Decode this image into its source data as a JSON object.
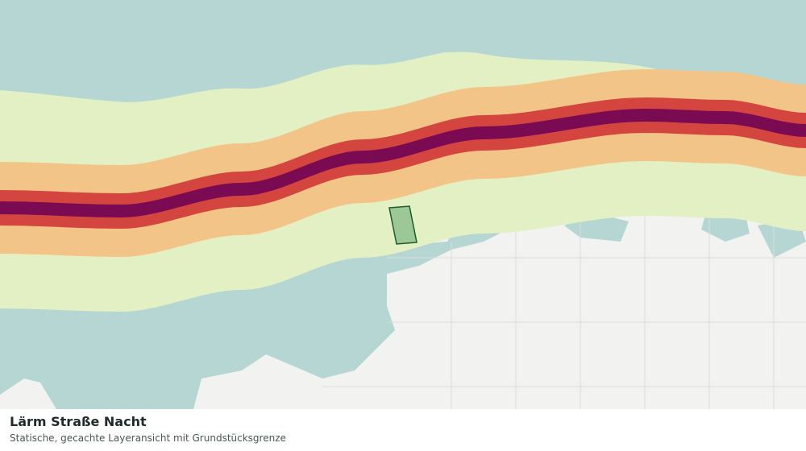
{
  "map": {
    "title": "Lärm Straße Nacht",
    "subtitle": "Statische, gecachte Layeransicht mit Grundstücksgrenze"
  }
}
